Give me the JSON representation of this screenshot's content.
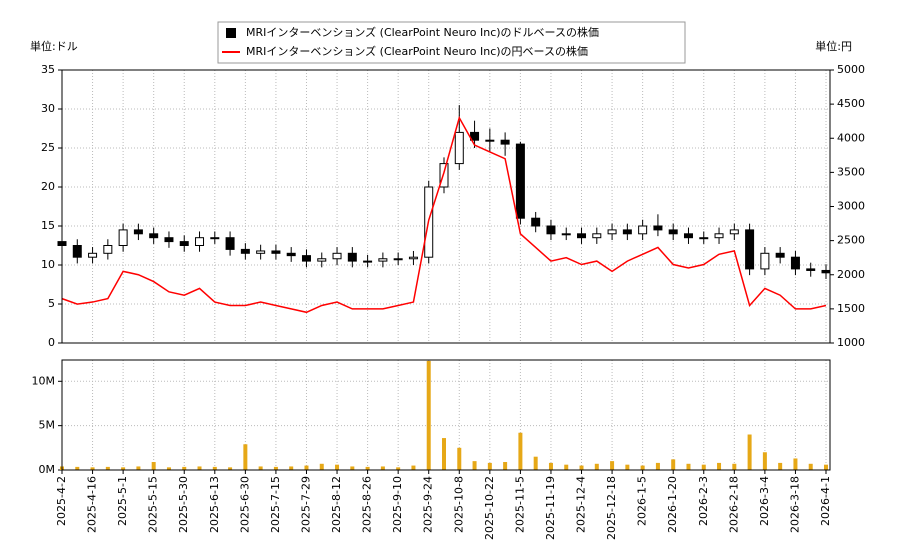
{
  "chart_data": [
    {
      "type": "candlestick",
      "y_label": "単位:ドル",
      "y2_label": "単位:円",
      "ylim": [
        0,
        35
      ],
      "yticks": [
        0,
        5,
        10,
        15,
        20,
        25,
        30,
        35
      ],
      "y2lim": [
        1000,
        5000
      ],
      "y2ticks": [
        1000,
        1500,
        2000,
        2500,
        3000,
        3500,
        4000,
        4500,
        5000
      ],
      "grid": true,
      "series": [
        {
          "name": "MRIインターベンションズ (ClearPoint Neuro Inc)のドルベースの株価",
          "color": "#000000",
          "open": [
            13,
            12.5,
            11,
            11.5,
            12.5,
            14.5,
            14,
            13.5,
            13,
            12.5,
            13.5,
            13.5,
            12,
            11.5,
            11.8,
            11.5,
            11.2,
            10.5,
            10.8,
            11.5,
            10.5,
            10.5,
            10.8,
            10.8,
            11,
            20,
            23,
            27,
            26,
            26,
            25.5,
            16,
            15,
            14,
            14,
            13.5,
            14,
            14.5,
            14,
            15,
            14.5,
            14,
            13.5,
            13.5,
            14,
            14.5,
            9.5,
            11.5,
            11,
            9.5,
            9.3
          ],
          "high": [
            13.8,
            13.3,
            12.3,
            13.3,
            15.3,
            15.3,
            14.8,
            14.3,
            13.8,
            14.3,
            14.3,
            14.3,
            12.8,
            12.6,
            12.6,
            12.3,
            12,
            11.6,
            12.3,
            12.3,
            11.3,
            11.6,
            11.6,
            11.8,
            20.8,
            23.8,
            30.5,
            28.5,
            27.5,
            27,
            25.8,
            16.8,
            15.8,
            14.8,
            14.8,
            14.8,
            15.3,
            15.3,
            15.8,
            16.5,
            15.3,
            14.8,
            14.3,
            14.8,
            15.3,
            15.3,
            12.3,
            12.3,
            11.8,
            10.3,
            10.1
          ],
          "low": [
            11.7,
            10.2,
            10.2,
            10.7,
            11.7,
            13.2,
            12.7,
            12.2,
            11.7,
            11.7,
            12.7,
            11.2,
            10.7,
            10.7,
            10.7,
            10.4,
            9.7,
            9.7,
            10,
            9.7,
            9.7,
            9.7,
            10,
            10,
            10.2,
            19.2,
            22.2,
            25,
            24.5,
            24,
            15.2,
            14.2,
            13.2,
            13.2,
            12.7,
            12.7,
            13.2,
            13.2,
            13.2,
            13.7,
            13.2,
            12.7,
            12.7,
            12.7,
            13.2,
            8.7,
            8.7,
            10.2,
            8.7,
            8.5,
            8.2
          ],
          "close": [
            12.5,
            11,
            11.5,
            12.5,
            14.5,
            14,
            13.5,
            13,
            12.5,
            13.5,
            13.5,
            12,
            11.5,
            11.8,
            11.5,
            11.2,
            10.5,
            10.8,
            11.5,
            10.5,
            10.5,
            10.8,
            10.8,
            11,
            20,
            23,
            27,
            26,
            26,
            25.5,
            16,
            15,
            14,
            14,
            13.5,
            14,
            14.5,
            14,
            15,
            14.5,
            14,
            13.5,
            13.5,
            14,
            14.5,
            9.5,
            11.5,
            11,
            9.5,
            9.3,
            9
          ]
        },
        {
          "name": "MRIインターベンションズ (ClearPoint Neuro Inc)の円ベースの株価",
          "color": "#ff0000",
          "axis": "y2",
          "values": [
            1650,
            1570,
            1600,
            1650,
            2050,
            2000,
            1900,
            1750,
            1700,
            1800,
            1600,
            1550,
            1550,
            1600,
            1550,
            1500,
            1450,
            1550,
            1600,
            1500,
            1500,
            1500,
            1550,
            1600,
            2800,
            3500,
            4300,
            3900,
            3800,
            3700,
            2600,
            2400,
            2200,
            2250,
            2150,
            2200,
            2050,
            2200,
            2300,
            2400,
            2150,
            2100,
            2150,
            2300,
            2350,
            1550,
            1800,
            1700,
            1500,
            1500,
            1550
          ]
        }
      ]
    },
    {
      "type": "bar",
      "color": "#e6a817",
      "categories": [
        "2025-4-2",
        null,
        "2025-4-16",
        null,
        "2025-5-1",
        null,
        "2025-5-15",
        null,
        "2025-5-30",
        null,
        "2025-6-13",
        null,
        "2025-6-30",
        null,
        "2025-7-15",
        null,
        "2025-7-29",
        null,
        "2025-8-12",
        null,
        "2025-8-26",
        null,
        "2025-9-10",
        null,
        "2025-9-24",
        null,
        "2025-10-8",
        null,
        "2025-10-22",
        null,
        "2025-11-5",
        null,
        "2025-11-19",
        null,
        "2025-12-4",
        null,
        "2025-12-18",
        null,
        "2026-1-5",
        null,
        "2026-1-20",
        null,
        "2026-2-3",
        null,
        "2026-2-18",
        null,
        "2026-3-4",
        null,
        "2026-3-18",
        null,
        "2026-4-1"
      ],
      "values": [
        400000,
        350000,
        300000,
        350000,
        300000,
        400000,
        900000,
        300000,
        350000,
        400000,
        350000,
        300000,
        2900000,
        400000,
        350000,
        400000,
        500000,
        700000,
        600000,
        400000,
        350000,
        400000,
        300000,
        500000,
        12300000,
        3600000,
        2500000,
        1000000,
        800000,
        900000,
        4200000,
        1500000,
        800000,
        600000,
        500000,
        700000,
        1000000,
        600000,
        500000,
        800000,
        1200000,
        700000,
        600000,
        800000,
        700000,
        4000000,
        2000000,
        800000,
        1300000,
        700000,
        600000
      ],
      "ylim": [
        0,
        12400000
      ],
      "yticks": [
        {
          "value": 0,
          "label": "0M"
        },
        {
          "value": 5000000,
          "label": "5M"
        },
        {
          "value": 10000000,
          "label": "10M"
        }
      ],
      "grid": true
    }
  ]
}
